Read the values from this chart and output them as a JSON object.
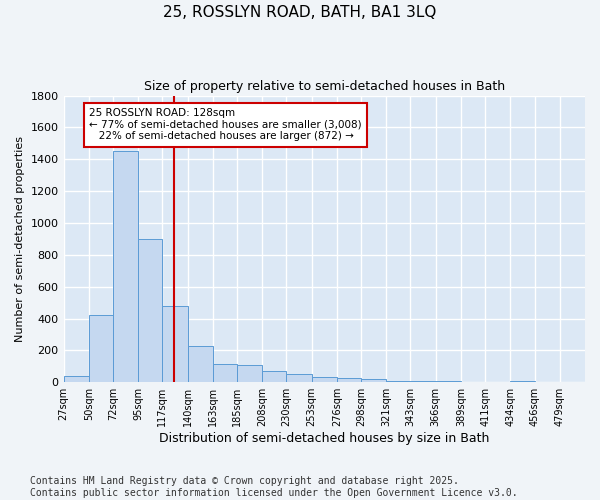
{
  "title": "25, ROSSLYN ROAD, BATH, BA1 3LQ",
  "subtitle": "Size of property relative to semi-detached houses in Bath",
  "xlabel": "Distribution of semi-detached houses by size in Bath",
  "ylabel": "Number of semi-detached properties",
  "bar_color": "#c5d8f0",
  "bar_edge_color": "#5b9bd5",
  "background_color": "#dce8f5",
  "grid_color": "#ffffff",
  "property_line_x": 128,
  "property_line_color": "#cc0000",
  "annotation_line1": "25 ROSSLYN ROAD: 128sqm",
  "annotation_line2": "← 77% of semi-detached houses are smaller (3,008)",
  "annotation_line3": "   22% of semi-detached houses are larger (872) →",
  "annotation_box_color": "#ffffff",
  "annotation_box_edge_color": "#cc0000",
  "categories": [
    "27sqm",
    "50sqm",
    "72sqm",
    "95sqm",
    "117sqm",
    "140sqm",
    "163sqm",
    "185sqm",
    "208sqm",
    "230sqm",
    "253sqm",
    "276sqm",
    "298sqm",
    "321sqm",
    "343sqm",
    "366sqm",
    "389sqm",
    "411sqm",
    "434sqm",
    "456sqm",
    "479sqm"
  ],
  "bin_edges": [
    27,
    50,
    72,
    95,
    117,
    140,
    163,
    185,
    208,
    230,
    253,
    276,
    298,
    321,
    343,
    366,
    389,
    411,
    434,
    456,
    479,
    502
  ],
  "values": [
    40,
    420,
    1450,
    900,
    480,
    230,
    115,
    110,
    70,
    50,
    35,
    25,
    20,
    10,
    8,
    5,
    3,
    2,
    10,
    1,
    0
  ],
  "ylim": [
    0,
    1800
  ],
  "yticks": [
    0,
    200,
    400,
    600,
    800,
    1000,
    1200,
    1400,
    1600,
    1800
  ],
  "footer": "Contains HM Land Registry data © Crown copyright and database right 2025.\nContains public sector information licensed under the Open Government Licence v3.0.",
  "footer_fontsize": 7.0,
  "fig_width": 6.0,
  "fig_height": 5.0
}
